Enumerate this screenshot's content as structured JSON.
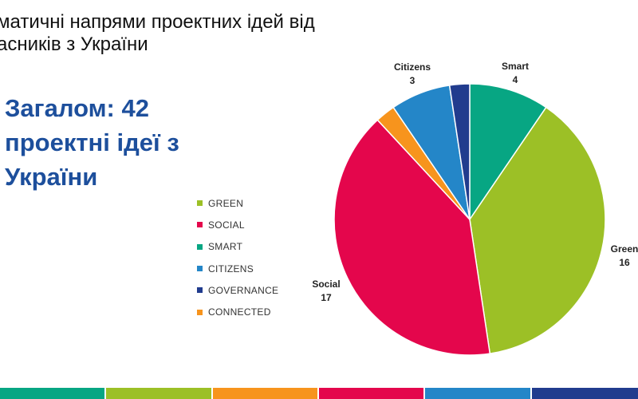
{
  "slide": {
    "title_line1": "матичні напрями проектних ідей від",
    "title_line2": "асників з України",
    "total_line1": "Загалом: 42",
    "total_line2": "проектні ідеї з",
    "total_line3": "України"
  },
  "chart_data": {
    "type": "pie",
    "title": "",
    "legend_position": "left",
    "slices": [
      {
        "name": "Smart",
        "value": 4,
        "color": "#07a683"
      },
      {
        "name": "Green",
        "value": 16,
        "color": "#9cc026"
      },
      {
        "name": "Social",
        "value": 17,
        "color": "#e4064c"
      },
      {
        "name": "Connected",
        "value": 1,
        "color": "#f7941d"
      },
      {
        "name": "Citizens",
        "value": 3,
        "color": "#2486c8"
      },
      {
        "name": "Governance",
        "value": 1,
        "color": "#213c8e"
      }
    ],
    "legend": [
      {
        "label": "GREEN",
        "color": "#9cc026"
      },
      {
        "label": "SOCIAL",
        "color": "#e4064c"
      },
      {
        "label": "SMART",
        "color": "#07a683"
      },
      {
        "label": "CITIZENS",
        "color": "#2486c8"
      },
      {
        "label": "GOVERNANCE",
        "color": "#213c8e"
      },
      {
        "label": "CONNECTED",
        "color": "#f7941d"
      }
    ],
    "data_labels": [
      {
        "name": "Smart",
        "value": "4"
      },
      {
        "name": "Green",
        "value": "16"
      },
      {
        "name": "Social",
        "value": "17"
      },
      {
        "name": "Citizens",
        "value": "3"
      }
    ]
  },
  "footer_colors": [
    "#07a683",
    "#9cc026",
    "#f7941d",
    "#e4064c",
    "#2486c8",
    "#213c8e"
  ]
}
